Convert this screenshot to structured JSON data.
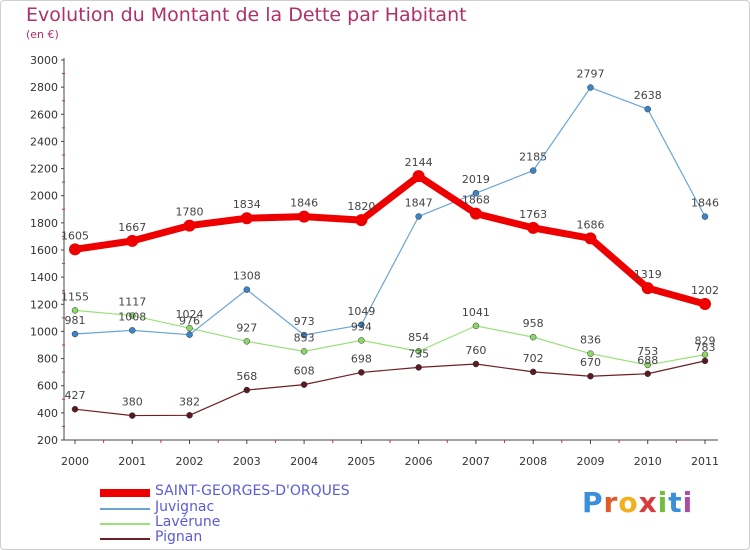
{
  "header": {
    "title": "Evolution du Montant de la Dette par Habitant",
    "subtitle": "(en €)"
  },
  "logo": {
    "letters": [
      "P",
      "r",
      "o",
      "x",
      "i",
      "t",
      "i"
    ],
    "colors": [
      "#3a8fd9",
      "#e05a2a",
      "#f2b01e",
      "#d93a3a",
      "#6fbf3a",
      "#3a8fd9",
      "#b04aa8"
    ]
  },
  "chart_data": {
    "type": "line",
    "x": [
      "2000",
      "2001",
      "2002",
      "2003",
      "2004",
      "2005",
      "2006",
      "2007",
      "2008",
      "2009",
      "2010",
      "2011"
    ],
    "ylim": [
      200,
      3000
    ],
    "yticks": [
      "200",
      "400",
      "600",
      "800",
      "1000",
      "1200",
      "1400",
      "1600",
      "1800",
      "2000",
      "2200",
      "2400",
      "2600",
      "2800",
      "3000"
    ],
    "grid": "off",
    "legend": "bottom-left",
    "series": [
      {
        "name": "Pignan",
        "color": "#6e1f25",
        "marker": "#5a1a1f",
        "width": 1.2,
        "values": [
          427,
          380,
          382,
          568,
          608,
          698,
          735,
          760,
          702,
          670,
          688,
          783
        ]
      },
      {
        "name": "Lavérune",
        "color": "#9be07a",
        "marker": "#8bd66a",
        "width": 1.2,
        "values": [
          1155,
          1117,
          1024,
          927,
          853,
          934,
          854,
          1041,
          958,
          836,
          753,
          829
        ]
      },
      {
        "name": "Juvignac",
        "color": "#6aa4d6",
        "marker": "#3a84c8",
        "width": 1.2,
        "values": [
          981,
          1008,
          976,
          1308,
          973,
          1049,
          1847,
          2019,
          2185,
          2797,
          2638,
          1846
        ]
      },
      {
        "name": "SAINT-GEORGES-D'ORQUES",
        "color": "#ee0000",
        "marker": "#ee0000",
        "width": 7,
        "values": [
          1605,
          1667,
          1780,
          1834,
          1846,
          1820,
          2144,
          1868,
          1763,
          1686,
          1319,
          1202
        ]
      }
    ],
    "legend_entries": [
      {
        "label": "SAINT-GEORGES-D'ORQUES",
        "color": "#ee0000",
        "label_color": "#5b5bd6"
      },
      {
        "label": "Juvignac",
        "color": "#6aa4d6",
        "label_color": "#5b5bd6"
      },
      {
        "label": "Lavérune",
        "color": "#9be07a",
        "label_color": "#5b5bd6"
      },
      {
        "label": "Pignan",
        "color": "#6e1f25",
        "label_color": "#5b5bd6"
      }
    ]
  }
}
